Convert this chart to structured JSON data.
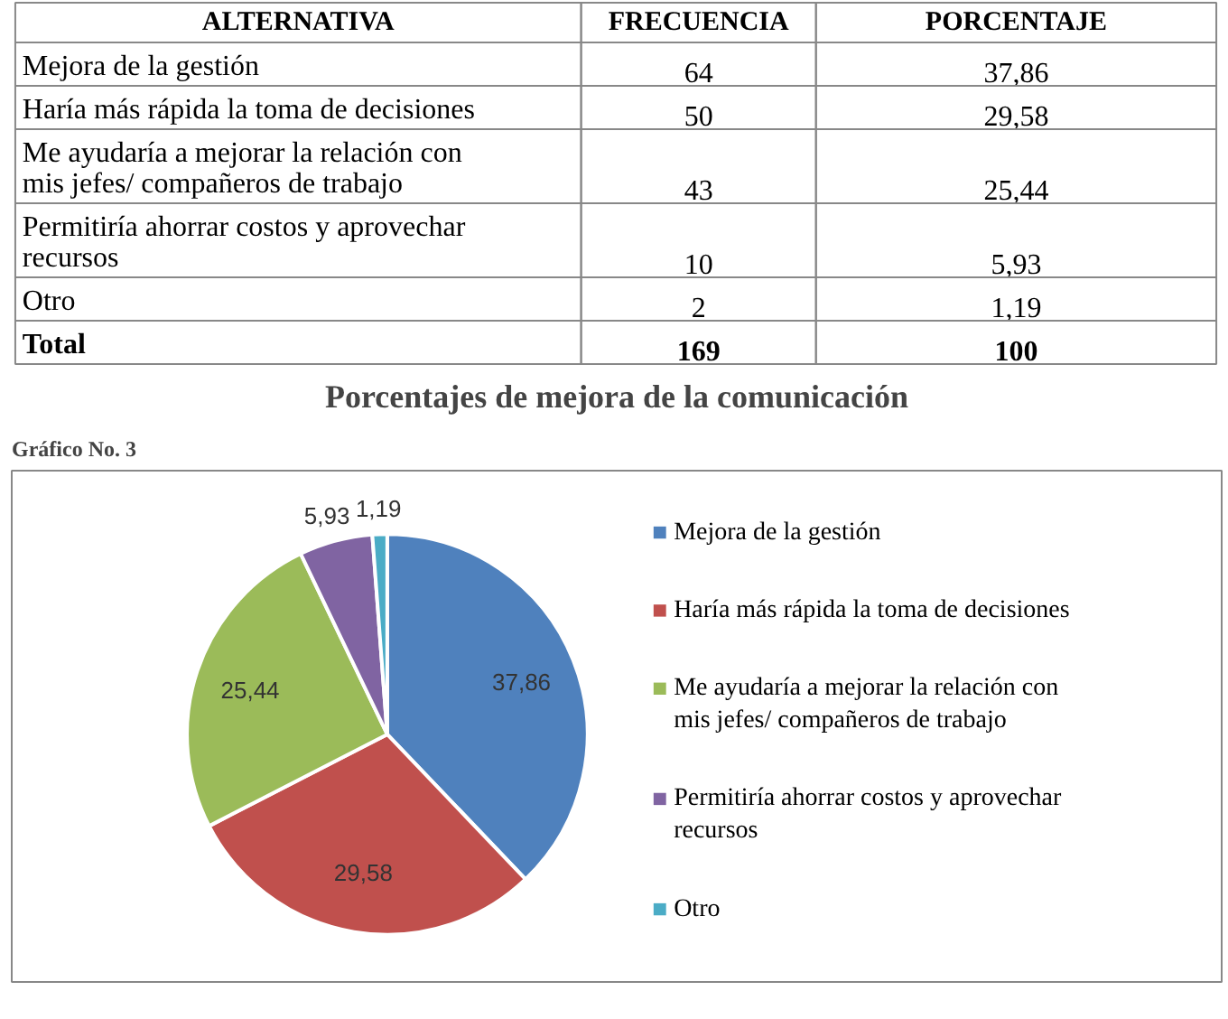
{
  "chart_data": [
    {
      "type": "other",
      "xlabel": "ALTERNATIVA",
      "categories": [
        "Mejora de la gestión",
        "Haría más rápida la toma de decisiones",
        "Me ayudaría a mejorar la relación con mis jefes/ compañeros de trabajo",
        "Permitiría ahorrar costos y aprovechar recursos",
        "Otro",
        "Total"
      ],
      "series": [
        {
          "name": "FRECUENCIA",
          "values": [
            64,
            50,
            43,
            10,
            2,
            169
          ],
          "value_labels": [
            "64",
            "50",
            "43",
            "10",
            "2",
            "169"
          ]
        },
        {
          "name": "PORCENTAJE",
          "values": [
            37.86,
            29.58,
            25.44,
            5.93,
            1.19,
            100
          ],
          "value_labels": [
            "37,86",
            "29,58",
            "25,44",
            "5,93",
            "1,19",
            "100"
          ]
        }
      ]
    },
    {
      "type": "pie",
      "title": "Porcentajes de mejora de la comunicación",
      "annotations": [
        "Gráfico No. 3"
      ],
      "legend": "right",
      "categories": [
        "Mejora de la gestión",
        "Haría más rápida la toma de decisiones",
        "Me ayudaría a mejorar la relación con mis jefes/ compañeros de trabajo",
        "Permitiría ahorrar costos y aprovechar recursos",
        "Otro"
      ],
      "values": [
        37.86,
        29.58,
        25.44,
        5.93,
        1.19
      ],
      "value_labels": [
        "37,86",
        "29,58",
        "25,44",
        "5,93",
        "1,19"
      ],
      "colors": [
        "#4f81bd",
        "#c0504d",
        "#9bbb59",
        "#8064a2",
        "#4bacc6"
      ]
    }
  ]
}
